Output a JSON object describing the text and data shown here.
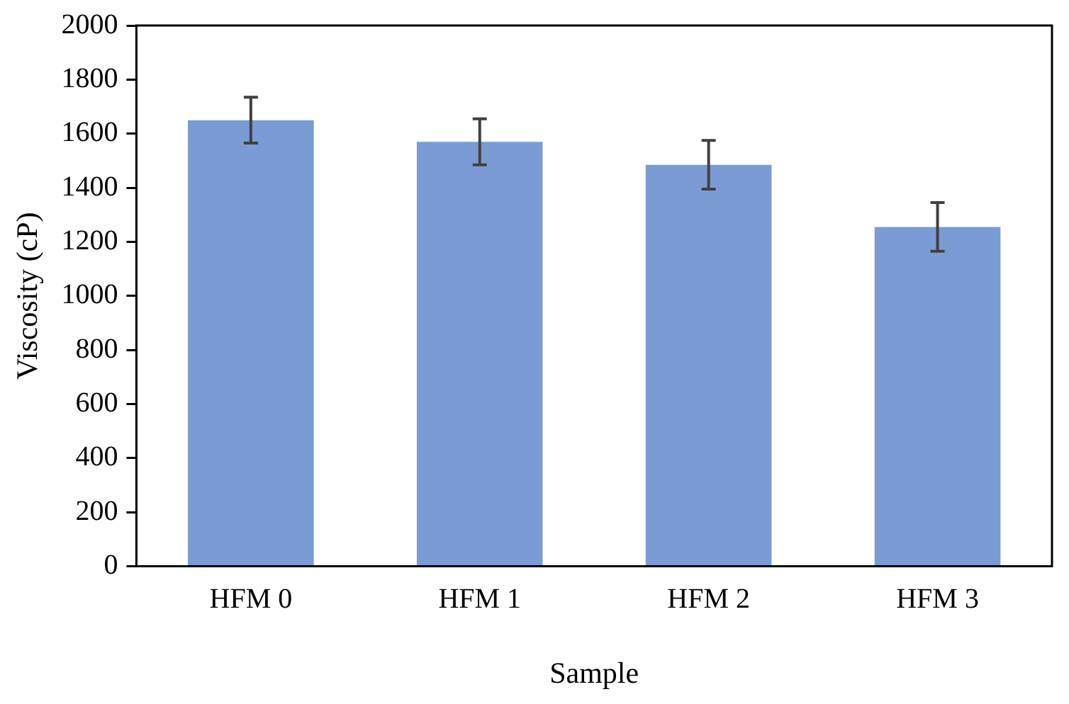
{
  "chart_data": {
    "type": "bar",
    "xlabel": "Sample",
    "ylabel": "Viscosity (cP)",
    "categories": [
      "HFM 0",
      "HFM 1",
      "HFM 2",
      "HFM 3"
    ],
    "values": [
      1650,
      1570,
      1485,
      1255
    ],
    "errors": [
      85,
      85,
      90,
      90
    ],
    "color": "#7b9bd4",
    "ylim": [
      0,
      2000
    ],
    "yticks": [
      0,
      200,
      400,
      600,
      800,
      1000,
      1200,
      1400,
      1600,
      1800,
      2000
    ],
    "grid": false,
    "legend": false
  }
}
